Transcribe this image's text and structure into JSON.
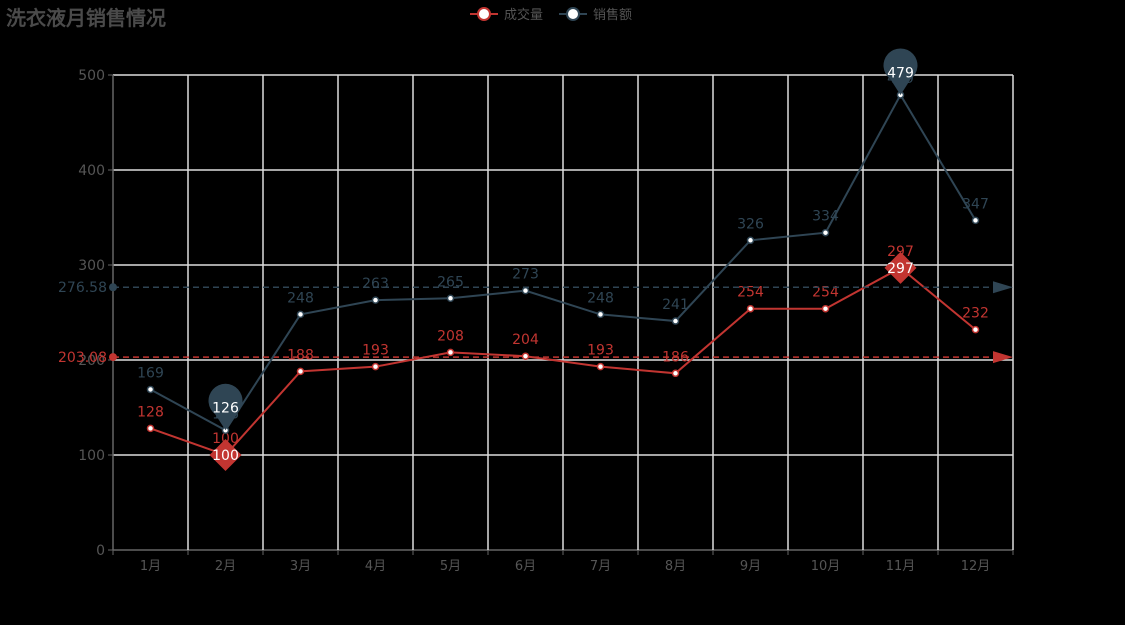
{
  "chart_data": {
    "type": "line",
    "title": "洗衣液月销售情况",
    "categories": [
      "1月",
      "2月",
      "3月",
      "4月",
      "5月",
      "6月",
      "7月",
      "8月",
      "9月",
      "10月",
      "11月",
      "12月"
    ],
    "ylim": [
      0,
      500
    ],
    "yticks": [
      0,
      100,
      200,
      300,
      400,
      500
    ],
    "grid": true,
    "legend_position": "top-center",
    "series": [
      {
        "name": "成交量",
        "color": "#c23531",
        "values": [
          128,
          100,
          188,
          193,
          208,
          204,
          193,
          186,
          254,
          254,
          297,
          232
        ],
        "average": 203.08,
        "average_label": "203.08",
        "min_marker": {
          "index": 1,
          "value": 100,
          "label": "100"
        },
        "max_marker": {
          "index": 10,
          "value": 297,
          "label": "297"
        }
      },
      {
        "name": "销售额",
        "color": "#2f4554",
        "values": [
          169,
          126,
          248,
          263,
          265,
          273,
          248,
          241,
          326,
          334,
          479,
          347
        ],
        "average": 276.58,
        "average_label": "276.58",
        "min_marker": {
          "index": 1,
          "value": 126,
          "label": "126"
        },
        "max_marker": {
          "index": 10,
          "value": 479,
          "label": "479"
        }
      }
    ]
  }
}
